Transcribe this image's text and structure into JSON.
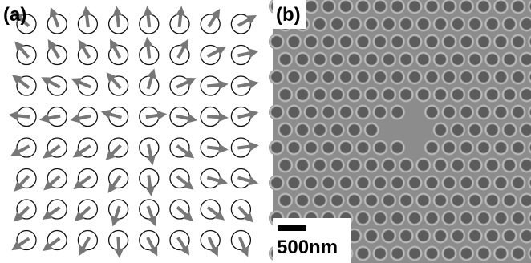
{
  "panel_a": {
    "label": "(a)"
  },
  "panel_b": {
    "label": "(b)",
    "scale_bar": "500nm"
  }
}
